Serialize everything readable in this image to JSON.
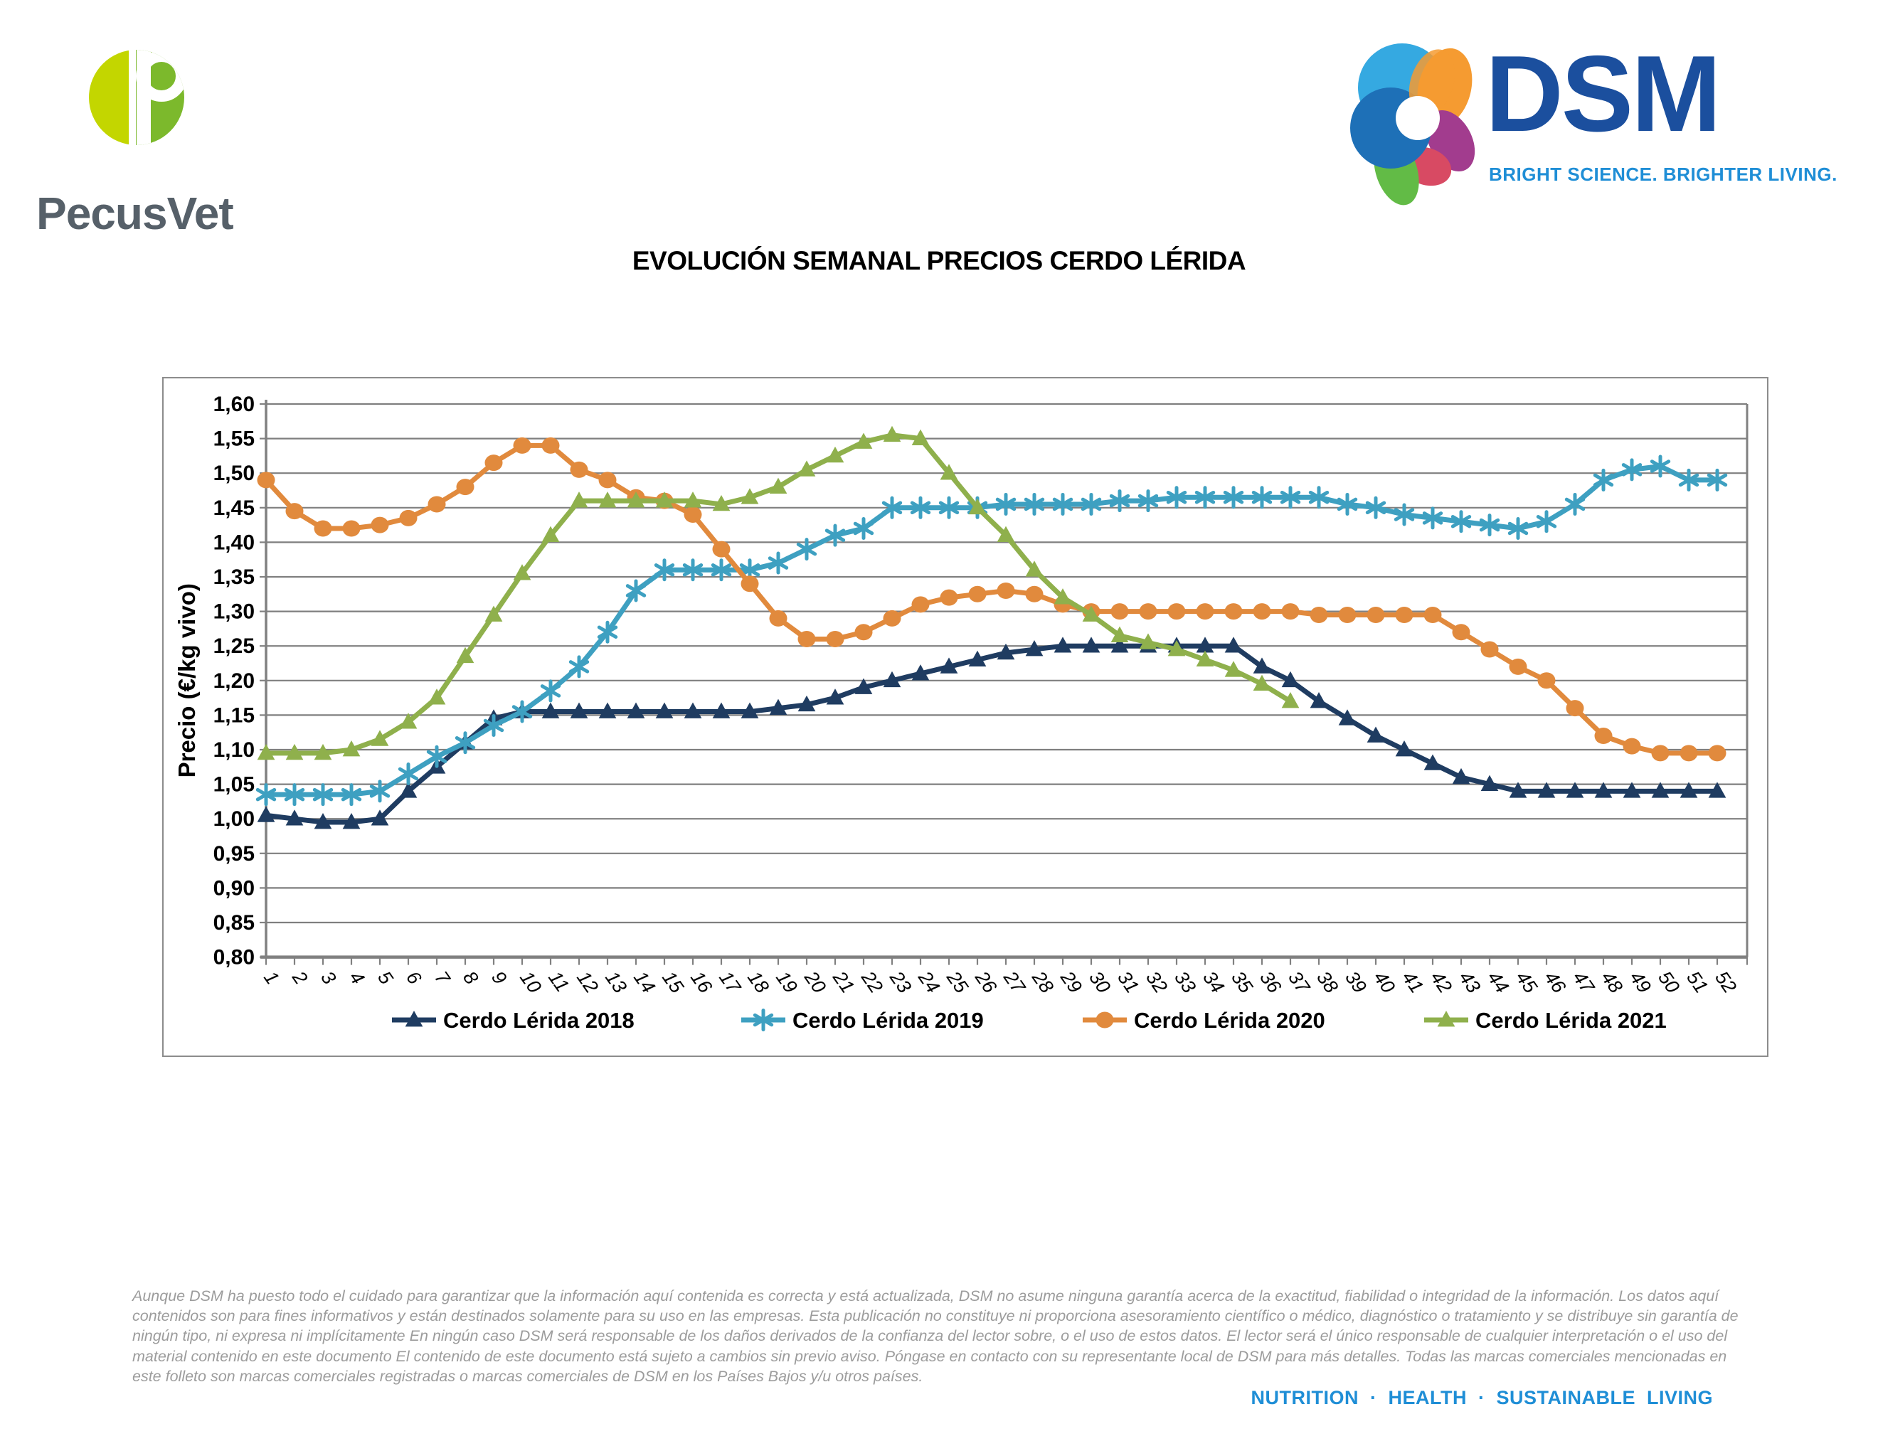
{
  "brand": {
    "pecusvet_wordmark": "PecusVet"
  },
  "dsm": {
    "name": "DSM",
    "tagline": "BRIGHT SCIENCE. BRIGHTER LIVING."
  },
  "chart_data": {
    "type": "line",
    "title": "EVOLUCIÓN SEMANAL PRECIOS CERDO LÉRIDA",
    "xlabel": "",
    "ylabel": "Precio (€/kg vivo)",
    "x_weeks": [
      1,
      2,
      3,
      4,
      5,
      6,
      7,
      8,
      9,
      10,
      11,
      12,
      13,
      14,
      15,
      16,
      17,
      18,
      19,
      20,
      21,
      22,
      23,
      24,
      25,
      26,
      27,
      28,
      29,
      30,
      31,
      32,
      33,
      34,
      35,
      36,
      37,
      38,
      39,
      40,
      41,
      42,
      43,
      44,
      45,
      46,
      47,
      48,
      49,
      50,
      51,
      52
    ],
    "ylim": [
      0.8,
      1.6
    ],
    "ystep": 0.05,
    "decimal_comma": true,
    "grid": "horizontal",
    "legend_position": "bottom",
    "colors": {
      "grid": "#7F7F7F",
      "axis": "#808080",
      "text": "#000000"
    },
    "series": [
      {
        "name": "Cerdo Lérida 2018",
        "color": "#1F3C61",
        "marker": "triangle",
        "values": [
          1.005,
          1.0,
          0.995,
          0.995,
          1.0,
          1.04,
          1.075,
          1.11,
          1.145,
          1.155,
          1.155,
          1.155,
          1.155,
          1.155,
          1.155,
          1.155,
          1.155,
          1.155,
          1.16,
          1.165,
          1.175,
          1.19,
          1.2,
          1.21,
          1.22,
          1.23,
          1.24,
          1.245,
          1.25,
          1.25,
          1.25,
          1.25,
          1.25,
          1.25,
          1.25,
          1.22,
          1.2,
          1.17,
          1.145,
          1.12,
          1.1,
          1.08,
          1.06,
          1.05,
          1.04,
          1.04,
          1.04,
          1.04,
          1.04,
          1.04,
          1.04,
          1.04
        ]
      },
      {
        "name": "Cerdo Lérida 2019",
        "color": "#3EA0C1",
        "marker": "asterisk",
        "values": [
          1.035,
          1.035,
          1.035,
          1.035,
          1.04,
          1.065,
          1.09,
          1.11,
          1.135,
          1.155,
          1.185,
          1.22,
          1.27,
          1.33,
          1.36,
          1.36,
          1.36,
          1.36,
          1.37,
          1.39,
          1.41,
          1.42,
          1.45,
          1.45,
          1.45,
          1.45,
          1.455,
          1.455,
          1.455,
          1.455,
          1.46,
          1.46,
          1.465,
          1.465,
          1.465,
          1.465,
          1.465,
          1.465,
          1.455,
          1.45,
          1.44,
          1.435,
          1.43,
          1.425,
          1.42,
          1.43,
          1.455,
          1.49,
          1.505,
          1.51,
          1.49,
          1.49
        ]
      },
      {
        "name": "Cerdo Lérida 2020",
        "color": "#E18A3D",
        "marker": "circle",
        "values": [
          1.49,
          1.445,
          1.42,
          1.42,
          1.425,
          1.435,
          1.455,
          1.48,
          1.515,
          1.54,
          1.54,
          1.505,
          1.49,
          1.465,
          1.46,
          1.44,
          1.39,
          1.34,
          1.29,
          1.26,
          1.26,
          1.27,
          1.29,
          1.31,
          1.32,
          1.325,
          1.33,
          1.325,
          1.31,
          1.3,
          1.3,
          1.3,
          1.3,
          1.3,
          1.3,
          1.3,
          1.3,
          1.295,
          1.295,
          1.295,
          1.295,
          1.295,
          1.27,
          1.245,
          1.22,
          1.2,
          1.16,
          1.12,
          1.105,
          1.095,
          1.095,
          1.095
        ]
      },
      {
        "name": "Cerdo Lérida 2021",
        "color": "#8FB04C",
        "marker": "triangle",
        "values": [
          1.095,
          1.095,
          1.095,
          1.1,
          1.115,
          1.14,
          1.175,
          1.235,
          1.295,
          1.355,
          1.41,
          1.46,
          1.46,
          1.46,
          1.46,
          1.46,
          1.455,
          1.465,
          1.48,
          1.505,
          1.525,
          1.545,
          1.555,
          1.55,
          1.5,
          1.45,
          1.41,
          1.36,
          1.32,
          1.295,
          1.265,
          1.255,
          1.245,
          1.23,
          1.215,
          1.195,
          1.17
        ]
      }
    ]
  },
  "footer": {
    "disclaimer": "Aunque DSM ha puesto todo el cuidado para garantizar que la información aquí contenida es correcta y está actualizada, DSM no asume ninguna garantía acerca de la exactitud, fiabilidad o integridad de la información. Los datos aquí contenidos son para fines informativos y están destinados solamente para su uso en las empresas. Esta publicación no constituye ni proporciona asesoramiento científico o médico, diagnóstico o tratamiento y se distribuye sin garantía de ningún tipo, ni expresa ni implícitamente En ningún caso DSM será responsable de los daños derivados de la confianza del lector sobre, o el uso de estos datos. El lector será el único responsable de cualquier interpretación o el uso del material contenido en este documento El contenido de este documento está sujeto a cambios sin previo aviso. Póngase en contacto con su representante local de DSM para más detalles. Todas las marcas comerciales mencionadas en este folleto son marcas comerciales registradas o marcas comerciales de DSM en los Países Bajos y/u otros países.",
    "tagline": "NUTRITION · HEALTH · SUSTAINABLE LIVING"
  }
}
